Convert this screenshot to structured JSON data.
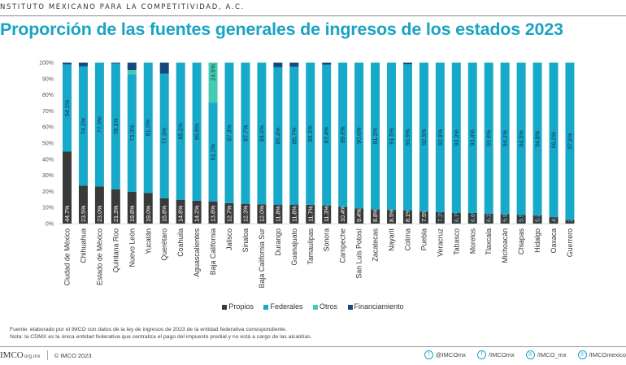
{
  "header": {
    "org_name": "NSTITUTO MEXICANO PARA LA COMPETITIVIDAD, A.C.",
    "title": "Proporción de las fuentes generales de ingresos de los estados 2023"
  },
  "colors": {
    "propios": "#3a3a3a",
    "federales": "#17a9c9",
    "otros": "#44cbb2",
    "financiamiento": "#154a7e",
    "title": "#1aa3c3"
  },
  "chart_data": {
    "type": "bar",
    "stacked": true,
    "title": "Proporción de las fuentes generales de ingresos de los estados 2023",
    "xlabel": "",
    "ylabel": "",
    "ylim": [
      0,
      100
    ],
    "yticks": [
      "0%",
      "10%",
      "20%",
      "30%",
      "40%",
      "50%",
      "60%",
      "70%",
      "80%",
      "90%",
      "100%"
    ],
    "legend_position": "bottom",
    "categories": [
      "Ciudad de México",
      "Chihuahua",
      "Estado de México",
      "Quintana Roo",
      "Nuevo León",
      "Yucatán",
      "Querétaro",
      "Coahuila",
      "Aguascalientes",
      "Baja California",
      "Jalisco",
      "Sinaloa",
      "Baja California Sur",
      "Durango",
      "Guanajuato",
      "Tamaulipas",
      "Sonora",
      "Campeche",
      "San Luis Potosí",
      "Zacatecas",
      "Nayarit",
      "Colima",
      "Puebla",
      "Veracruz",
      "Tabasco",
      "Morelos",
      "Tlaxcala",
      "Michoacán",
      "Chiapas",
      "Hidalgo",
      "Oaxaca",
      "Guerrero"
    ],
    "series": [
      {
        "name": "Propios",
        "values": [
          44.7,
          23.5,
          23.0,
          21.3,
          19.8,
          19.0,
          15.8,
          14.8,
          14.2,
          13.8,
          12.7,
          12.3,
          12.0,
          11.8,
          11.8,
          11.7,
          11.3,
          10.4,
          9.4,
          8.8,
          8.5,
          8.1,
          7.5,
          7.2,
          6.7,
          6.6,
          6.2,
          5.9,
          5.5,
          5.2,
          4.0,
          2.4
        ],
        "labels": [
          "44.7%",
          "23.5%",
          "23.0%",
          "21.3%",
          "19.8%",
          "19.0%",
          "15.8%",
          "14.8%",
          "14.2%",
          "13.8%",
          "12.7%",
          "12.3%",
          "12.0%",
          "11.8%",
          "11.8%",
          "11.7%",
          "11.3%",
          "10.4%",
          "9.4%",
          "8.8%",
          "8.5%",
          "8.1%",
          "7.5%",
          "7.2%",
          "6.7%",
          "6.6%",
          "6.2%",
          "5.9%",
          "5.5%",
          "5.2%",
          "4.0%",
          "2.4%"
        ]
      },
      {
        "name": "Federales",
        "values": [
          54.1,
          74.2,
          77.0,
          78.1,
          73.0,
          81.0,
          77.3,
          85.2,
          85.8,
          61.2,
          87.3,
          87.7,
          88.0,
          85.4,
          85.7,
          88.3,
          87.4,
          89.6,
          90.6,
          91.2,
          91.5,
          90.9,
          92.5,
          92.8,
          93.3,
          93.4,
          93.8,
          94.1,
          94.5,
          94.8,
          96.0,
          97.6
        ],
        "labels": [
          "54.1%",
          "74.2%",
          "77.0%",
          "78.1%",
          "73.0%",
          "81.0%",
          "77.3%",
          "85.2%",
          "85.8%",
          "61.2%",
          "87.3%",
          "87.7%",
          "88.0%",
          "85.4%",
          "85.7%",
          "88.3%",
          "87.4%",
          "89.6%",
          "90.6%",
          "91.2%",
          "91.5%",
          "90.9%",
          "92.5%",
          "92.8%",
          "93.3%",
          "93.4%",
          "93.8%",
          "94.1%",
          "94.5%",
          "94.8%",
          "96.0%",
          "97.6%"
        ]
      },
      {
        "name": "Otros",
        "values": [
          0,
          0,
          0,
          0,
          2.6,
          0,
          0,
          0,
          0,
          24.9,
          0,
          0,
          0,
          0,
          0,
          0,
          0,
          0,
          0,
          0,
          0,
          0,
          0,
          0,
          0,
          0,
          0,
          0,
          0,
          0,
          0,
          0
        ],
        "labels": [
          "",
          "",
          "",
          "",
          "",
          "",
          "",
          "",
          "",
          "24.9%",
          "",
          "",
          "",
          "",
          "",
          "",
          "",
          "",
          "",
          "",
          "",
          "",
          "",
          "",
          "",
          "",
          "",
          "",
          "",
          "",
          "",
          ""
        ]
      },
      {
        "name": "Financiamiento",
        "values": [
          1.2,
          2.3,
          0,
          0.6,
          4.6,
          0,
          6.9,
          0,
          0,
          0.1,
          0,
          0,
          0,
          2.8,
          2.5,
          0,
          1.3,
          0,
          0,
          0,
          0,
          1.0,
          0,
          0,
          0,
          0,
          0,
          0,
          0,
          0,
          0,
          0
        ],
        "labels": []
      }
    ]
  },
  "legend": {
    "items": [
      "Propios",
      "Federales",
      "Otros",
      "Financiamiento"
    ]
  },
  "notes": {
    "source": "Fuente: elaborado por el IMCO con datos de la ley de ingresos de 2023 de la entidad federativa correspondiente.",
    "note": "Nota: la CDMX es la única entidad federativa que centraliza el pago del impuesto predial y no está a cargo de las alcaldías."
  },
  "footer": {
    "logo_text": "IMCO",
    "site": "org.mx",
    "copyright": "© IMCO 2023",
    "social": [
      {
        "icon": "twitter-icon",
        "glyph": "t",
        "handle": "@IMCOmx"
      },
      {
        "icon": "facebook-icon",
        "glyph": "f",
        "handle": "/IMCOmx"
      },
      {
        "icon": "instagram-icon",
        "glyph": "◎",
        "handle": "/IMCO_mx"
      },
      {
        "icon": "instagram-icon",
        "glyph": "◎",
        "handle": "/IMCOmexico"
      }
    ]
  }
}
